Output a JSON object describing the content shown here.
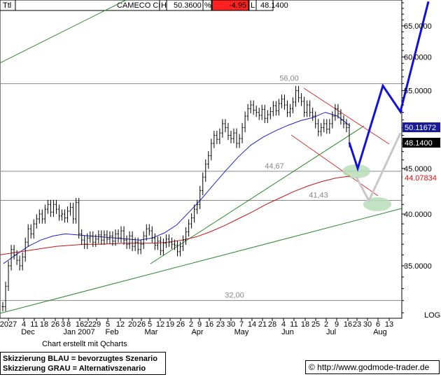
{
  "header": {
    "symbol": "Ttl",
    "name": "CAMECO CP",
    "high_label": "H",
    "last_value": "50.3600",
    "pct_label": "%",
    "change_value": "-4.95",
    "low_label": "L",
    "low_value": "48.1400"
  },
  "footer": {
    "credit": "Chart erstellt mit Qcharts",
    "legend_blue": "Skizzierung BLAU = bevorzugtes Szenario",
    "legend_gray": "Skizzierung GRAU = Alternativszenario",
    "url": "© http://www.godmode-trader.de"
  },
  "colors": {
    "price": "#000000",
    "ma_short": "#2020c8",
    "ma_long": "#c81414",
    "trendline": "#2a8a2a",
    "channel": "#e03030",
    "scenario_blue": "#1010e0",
    "scenario_gray": "#c8c8c8",
    "target_ellipse": "#b8dcb8",
    "negative_box": "#ff2020"
  },
  "chart_data": {
    "type": "line",
    "title": "CAMECO CP",
    "y_scale": "log",
    "y_axis_label": "LOG",
    "ylim": [
      30.6,
      71.0
    ],
    "y_ticks": [
      "35.0000",
      "40.0000",
      "45.0000",
      "50.0000",
      "55.0000",
      "60.0000",
      "65.0000"
    ],
    "y_tick_values": [
      35,
      40,
      45,
      50,
      55,
      60,
      65
    ],
    "x_day_labels": [
      "2027",
      "4",
      "11",
      "18",
      "26",
      "3",
      "8",
      "16",
      "22",
      "29",
      "5",
      "12",
      "20",
      "26",
      "5",
      "12",
      "19",
      "26",
      "2",
      "9",
      "16",
      "23",
      "30",
      "7",
      "14",
      "21",
      "28",
      "4",
      "11",
      "18",
      "25",
      "2",
      "9",
      "16",
      "23",
      "30",
      "6",
      "13"
    ],
    "x_month_labels": [
      "Dec",
      "Jan 2007",
      "Feb",
      "Mar",
      "Apr",
      "May",
      "Jun",
      "Jul",
      "Aug"
    ],
    "price_labels": {
      "last_close": "50.11672",
      "low": "48.1400",
      "ma_long": "44.07834"
    },
    "horizontal_levels": [
      {
        "label": "56,00",
        "value": 56.0
      },
      {
        "label": "44,67",
        "value": 44.67
      },
      {
        "label": "41,43",
        "value": 41.43
      },
      {
        "label": "32,00",
        "value": 32.0
      }
    ],
    "series": [
      {
        "name": "Price",
        "values": [
          31.5,
          33.2,
          35.0,
          36.5,
          36.0,
          35.5,
          35.0,
          35.8,
          37.2,
          38.5,
          38.0,
          39.0,
          39.5,
          40.0,
          39.5,
          40.5,
          41.0,
          40.2,
          41.0,
          40.5,
          39.8,
          40.0,
          39.6,
          40.3,
          40.7,
          39.5,
          41.2,
          38.0,
          37.4,
          37.0,
          37.6,
          37.8,
          37.2,
          37.5,
          37.9,
          37.4,
          37.9,
          37.5,
          37.8,
          37.3,
          38.0,
          37.6,
          38.3,
          37.4,
          37.0,
          37.8,
          36.8,
          37.2,
          36.5,
          37.0,
          37.8,
          38.5,
          38.3,
          37.6,
          36.9,
          37.3,
          36.4,
          37.1,
          37.5,
          37.2,
          37.0,
          36.9,
          36.3,
          36.8,
          37.4,
          38.2,
          39.0,
          39.6,
          40.5,
          41.0,
          42.5,
          44.0,
          45.5,
          46.5,
          48.0,
          49.0,
          48.5,
          49.3,
          50.5,
          50.0,
          49.0,
          48.6,
          49.3,
          48.0,
          48.6,
          50.0,
          51.5,
          52.5,
          53.0,
          52.3,
          52.0,
          51.6,
          52.4,
          51.2,
          51.7,
          52.1,
          52.9,
          52.2,
          53.2,
          53.8,
          53.0,
          52.0,
          52.5,
          53.4,
          55.0,
          54.0,
          53.5,
          52.0,
          53.0,
          52.0,
          51.5,
          50.5,
          49.5,
          50.0,
          50.5,
          49.8,
          50.5,
          51.5,
          52.5,
          51.8,
          51.0,
          50.5,
          50.0,
          48.1
        ]
      },
      {
        "name": "MA short",
        "values": [
          35.2,
          36.0,
          36.8,
          37.4,
          37.8,
          38.0,
          37.9,
          37.8,
          37.7,
          37.6,
          37.5,
          37.4,
          37.6,
          38.1,
          38.9,
          40.2,
          41.6,
          43.2,
          44.8,
          46.4,
          47.8,
          48.8,
          49.6,
          50.3,
          50.9,
          51.3,
          52.0,
          51.5,
          50.2
        ]
      },
      {
        "name": "MA long",
        "values": [
          36.0,
          36.2,
          36.4,
          36.6,
          36.8,
          36.9,
          37.0,
          37.0,
          37.05,
          37.1,
          37.1,
          37.1,
          37.2,
          37.4,
          37.7,
          38.2,
          38.8,
          39.5,
          40.2,
          41.0,
          41.7,
          42.4,
          43.0,
          43.5,
          43.9,
          44.1
        ]
      },
      {
        "name": "Skizzierung BLAU",
        "values": [
          48.1,
          45.0,
          55.7,
          52.1,
          69.2
        ]
      },
      {
        "name": "Skizzierung GRAU",
        "values": [
          44.0,
          41.4,
          49.3
        ]
      }
    ]
  }
}
